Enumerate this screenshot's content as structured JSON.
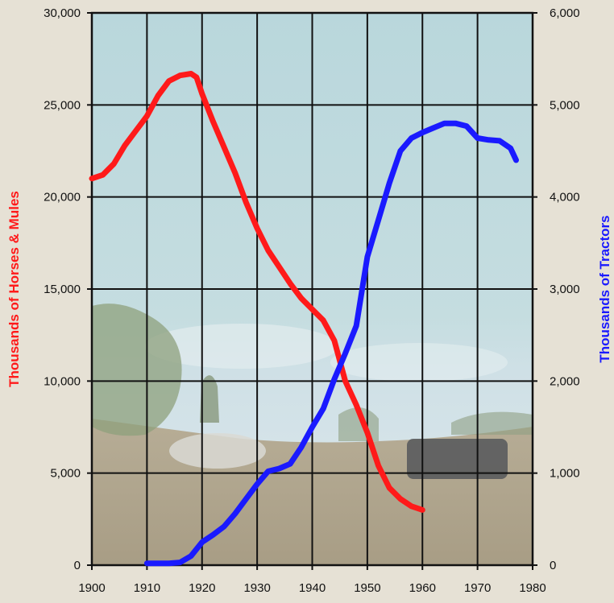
{
  "chart_data": {
    "type": "line",
    "xlabel": "",
    "x_ticks": [
      1900,
      1910,
      1920,
      1930,
      1940,
      1950,
      1960,
      1970,
      1980
    ],
    "xlim": [
      1900,
      1980
    ],
    "y_left": {
      "label": "Thousands of Horses & Mules",
      "color": "#ff1a1a",
      "ylim": [
        0,
        30000
      ],
      "ticks": [
        "0",
        "5,000",
        "10,000",
        "15,000",
        "20,000",
        "25,000",
        "30,000"
      ],
      "tick_values": [
        0,
        5000,
        10000,
        15000,
        20000,
        25000,
        30000
      ]
    },
    "y_right": {
      "label": "Thousands of Tractors",
      "color": "#1a1aff",
      "ylim": [
        0,
        6000
      ],
      "ticks": [
        "0",
        "1,000",
        "2,000",
        "3,000",
        "4,000",
        "5,000",
        "6,000"
      ],
      "tick_values": [
        0,
        1000,
        2000,
        3000,
        4000,
        5000,
        6000
      ]
    },
    "grid": true,
    "series": [
      {
        "axis": "left",
        "color": "#ff1a1a",
        "x": [
          1900,
          1902,
          1904,
          1906,
          1908,
          1910,
          1912,
          1914,
          1916,
          1918,
          1919,
          1920,
          1922,
          1924,
          1926,
          1928,
          1930,
          1932,
          1934,
          1936,
          1938,
          1940,
          1942,
          1944,
          1946,
          1948,
          1950,
          1952,
          1954,
          1956,
          1958,
          1960
        ],
        "values": [
          21000,
          21200,
          21800,
          22800,
          23600,
          24400,
          25500,
          26300,
          26600,
          26700,
          26500,
          25600,
          24100,
          22700,
          21300,
          19700,
          18300,
          17100,
          16200,
          15300,
          14500,
          13900,
          13300,
          12200,
          10000,
          8700,
          7200,
          5400,
          4200,
          3600,
          3200,
          3000
        ]
      },
      {
        "axis": "right",
        "color": "#1a1aff",
        "x": [
          1910,
          1912,
          1914,
          1916,
          1918,
          1920,
          1922,
          1924,
          1926,
          1928,
          1930,
          1932,
          1934,
          1936,
          1938,
          1940,
          1942,
          1944,
          1946,
          1948,
          1950,
          1952,
          1954,
          1956,
          1958,
          1960,
          1962,
          1964,
          1966,
          1968,
          1970,
          1972,
          1974,
          1976,
          1977
        ],
        "values": [
          20,
          20,
          20,
          30,
          100,
          250,
          330,
          420,
          560,
          720,
          880,
          1020,
          1050,
          1100,
          1280,
          1500,
          1700,
          2020,
          2300,
          2600,
          3350,
          3750,
          4150,
          4500,
          4640,
          4700,
          4750,
          4800,
          4800,
          4770,
          4640,
          4620,
          4610,
          4530,
          4400
        ]
      }
    ]
  }
}
